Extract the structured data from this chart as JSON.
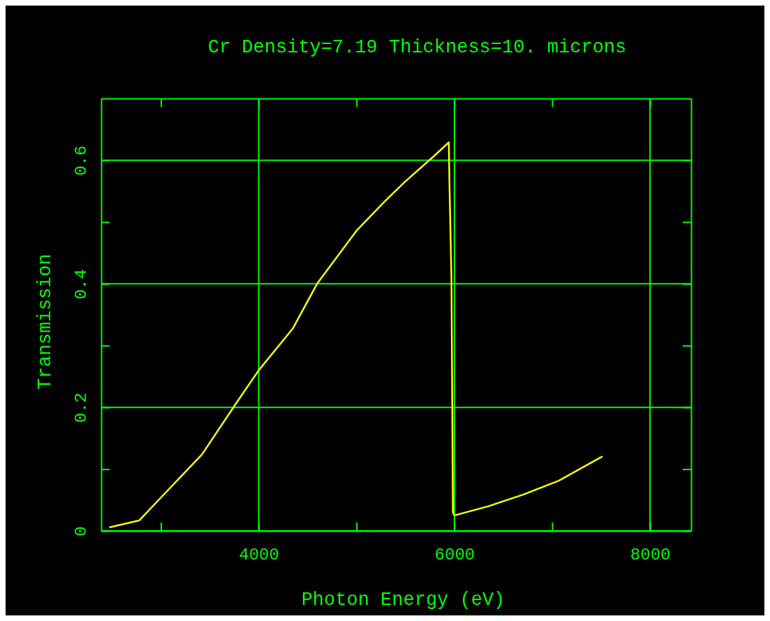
{
  "chart_data": {
    "type": "line",
    "title": "Cr Density=7.19 Thickness=10. microns",
    "xlabel": "Photon Energy (eV)",
    "ylabel": "Transmission",
    "x": [
      2480,
      2780,
      3000,
      3421,
      3779,
      4000,
      4350,
      4600,
      5000,
      5286,
      5493,
      5779,
      5943,
      5950,
      5970,
      5985,
      6000,
      6350,
      6707,
      7064,
      7507
    ],
    "series": [
      {
        "color": "#ffff00",
        "values": [
          0.006,
          0.017,
          0.054,
          0.124,
          0.209,
          0.26,
          0.328,
          0.401,
          0.486,
          0.533,
          0.565,
          0.605,
          0.629,
          0.56,
          0.41,
          0.03,
          0.025,
          0.04,
          0.059,
          0.081,
          0.12
        ]
      }
    ],
    "xlim": [
      2390,
      8420
    ],
    "ylim": [
      0,
      0.7
    ],
    "xticks": [
      {
        "value": 3000,
        "label": null
      },
      4000,
      {
        "value": 5000,
        "label": null
      },
      6000,
      {
        "value": 7000,
        "label": null
      },
      8000
    ],
    "yticks": [
      0,
      {
        "value": 0.1,
        "label": null
      },
      0.2,
      {
        "value": 0.3,
        "label": null
      },
      0.4,
      {
        "value": 0.5,
        "label": null
      },
      0.6
    ],
    "grid": true,
    "line_style": "solid",
    "marker": "none"
  }
}
